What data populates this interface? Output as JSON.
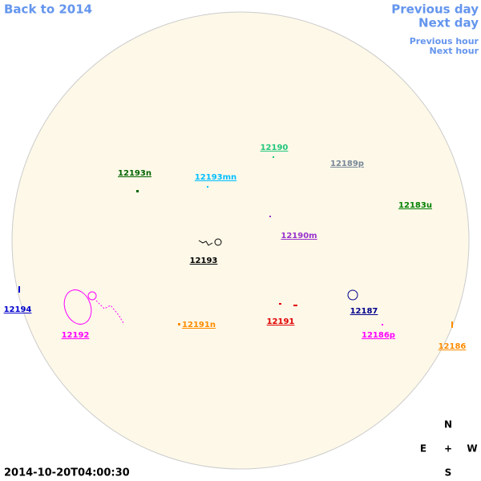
{
  "nav": {
    "back": "Back to 2014",
    "previous_day": "Previous day",
    "next_day": "Next day",
    "previous_hour": "Previous hour",
    "next_hour": "Next hour"
  },
  "regions": [
    {
      "label": "12190",
      "color": "#22c77a"
    },
    {
      "label": "12189p",
      "color": "#778899"
    },
    {
      "label": "12193n",
      "color": "#006400"
    },
    {
      "label": "12193mn",
      "color": "#00bfff"
    },
    {
      "label": "12183u",
      "color": "#008000"
    },
    {
      "label": "12190m",
      "color": "#9932cc"
    },
    {
      "label": "12193",
      "color": "#000000"
    },
    {
      "label": "12194",
      "color": "#0000cd"
    },
    {
      "label": "12187",
      "color": "#00008b"
    },
    {
      "label": "12192",
      "color": "#ff00ff"
    },
    {
      "label": "12191n",
      "color": "#ff8c00"
    },
    {
      "label": "12191",
      "color": "#e00000"
    },
    {
      "label": "12186p",
      "color": "#ff00ff"
    },
    {
      "label": "12186",
      "color": "#ff8c00"
    }
  ],
  "timestamp": "2014-10-20T04:00:30",
  "compass": {
    "north": "N",
    "east": "E",
    "center": "+",
    "west": "W",
    "south": "S"
  }
}
